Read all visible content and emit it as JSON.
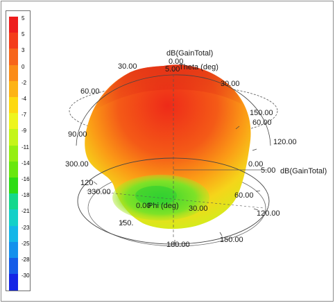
{
  "legend": {
    "ticks": [
      "5",
      "5",
      "3",
      "0",
      "-2",
      "-4",
      "-7",
      "-9",
      "-11",
      "-14",
      "-16",
      "-18",
      "-21",
      "-23",
      "-25",
      "-28",
      "-30"
    ],
    "colors": [
      "#ee1d1d",
      "#f43d1a",
      "#f7651a",
      "#fb8c17",
      "#fdb315",
      "#fdd910",
      "#eef51e",
      "#c4f519",
      "#95ef12",
      "#68e70e",
      "#2ddc14",
      "#14d88c",
      "#14d0c8",
      "#14b6e8",
      "#1490ec",
      "#155ce8",
      "#1425e6"
    ]
  },
  "labels": {
    "title": "dB(GainTotal)",
    "theta_axis": "Theta (deg)",
    "phi_axis": "Phi (deg)",
    "gain_axis": "dB(GainTotal)",
    "top_zero": "0.00",
    "top_small": "5.00",
    "t30_left": "30.00",
    "t30_right": "30.00",
    "t60_left": "60.00",
    "t60_right": "60.00",
    "t90_left": "90.00",
    "t120_right": "120.00",
    "t150_right": "150.00",
    "ring300": "300.00",
    "ring120_left": "120",
    "ring330": "330.00",
    "ring_phi_zero": "0.00",
    "ring30": "30.00",
    "ring60": "60.00",
    "ring120_right": "120.00",
    "ring150_left": "150.",
    "ring180": "180.00",
    "ring150_right": "150.00",
    "gain_zero": "0.00",
    "gain_right": "5.00"
  }
}
